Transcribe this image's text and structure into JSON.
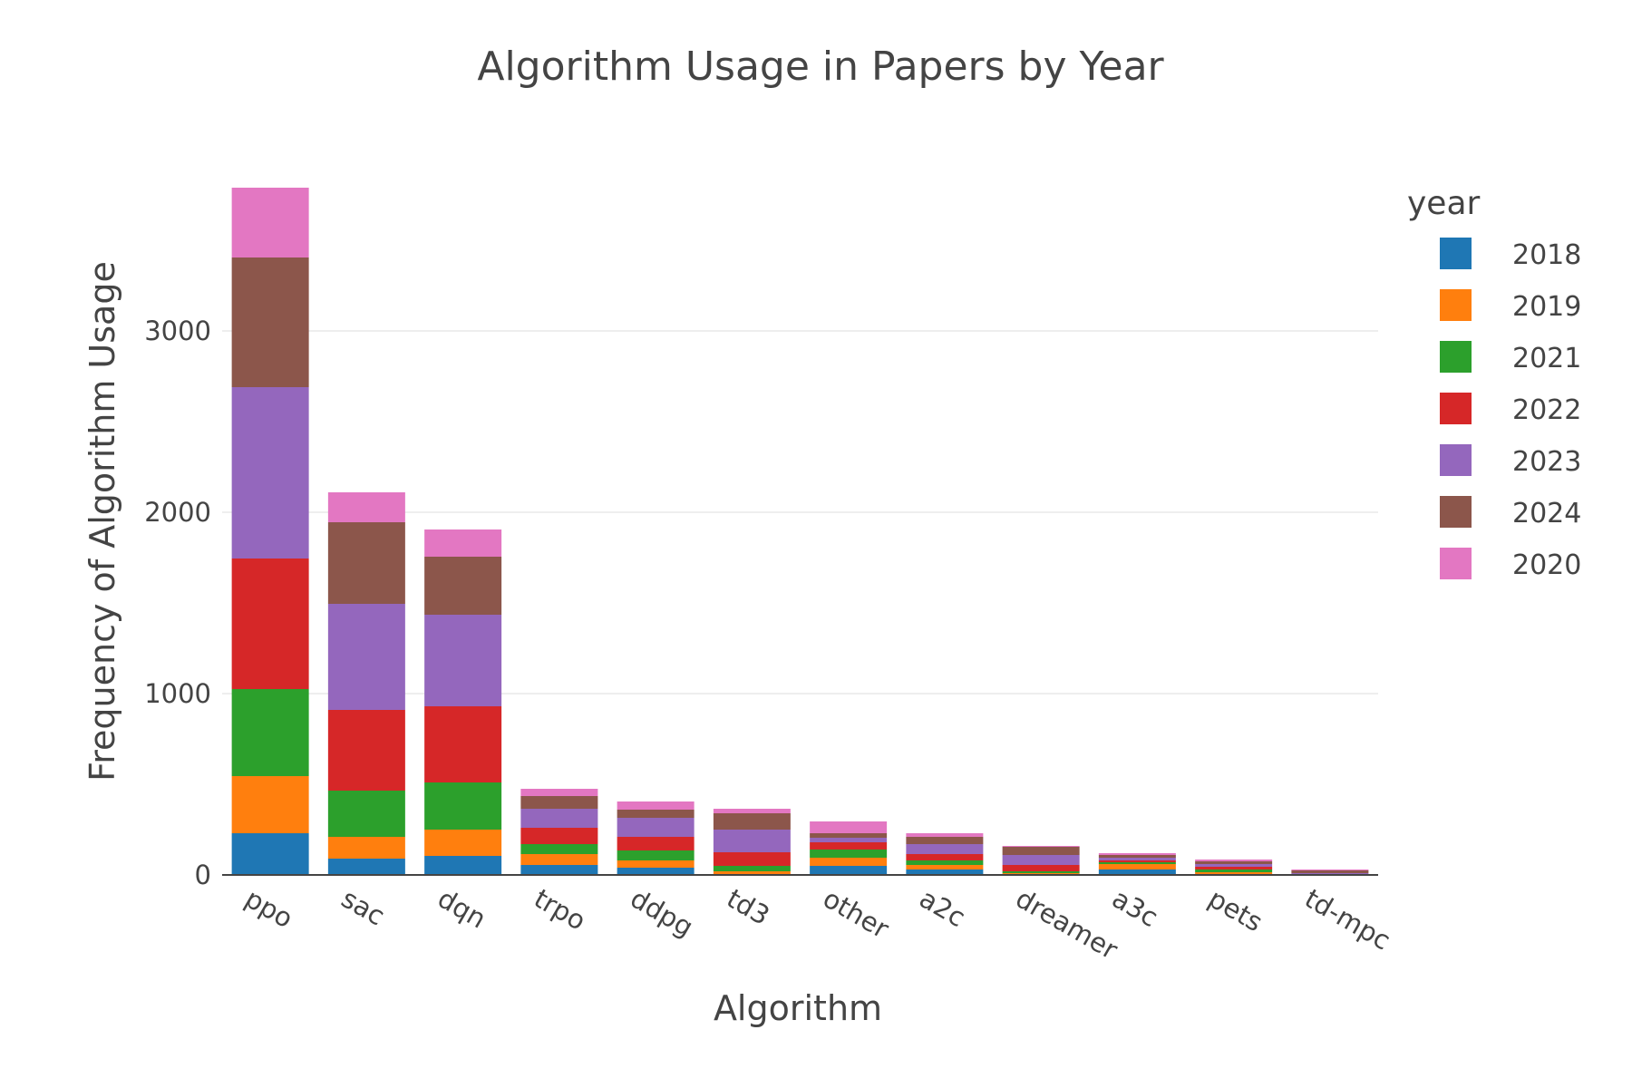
{
  "chart_data": {
    "type": "bar",
    "barmode": "stack",
    "title": "Algorithm Usage in Papers by Year",
    "xlabel": "Algorithm",
    "ylabel": "Frequency of Algorithm Usage",
    "legend_title": "year",
    "legend_position": "right",
    "grid": true,
    "ylim": [
      0,
      3800
    ],
    "yticks": [
      0,
      1000,
      2000,
      3000
    ],
    "categories": [
      "ppo",
      "sac",
      "dqn",
      "trpo",
      "ddpg",
      "td3",
      "other",
      "a2c",
      "dreamer",
      "a3c",
      "pets",
      "td-mpc"
    ],
    "series": [
      {
        "name": "2018",
        "color": "#1f77b4",
        "values": [
          230,
          90,
          105,
          55,
          40,
          5,
          50,
          30,
          5,
          30,
          5,
          0
        ]
      },
      {
        "name": "2019",
        "color": "#ff7f0e",
        "values": [
          315,
          120,
          145,
          60,
          40,
          15,
          45,
          25,
          5,
          30,
          10,
          0
        ]
      },
      {
        "name": "2021",
        "color": "#2ca02c",
        "values": [
          480,
          255,
          260,
          55,
          55,
          30,
          45,
          25,
          10,
          10,
          15,
          2
        ]
      },
      {
        "name": "2022",
        "color": "#d62728",
        "values": [
          720,
          445,
          420,
          90,
          75,
          75,
          40,
          35,
          35,
          10,
          15,
          3
        ]
      },
      {
        "name": "2023",
        "color": "#9467bd",
        "values": [
          945,
          585,
          505,
          105,
          105,
          125,
          25,
          55,
          55,
          15,
          15,
          5
        ]
      },
      {
        "name": "2024",
        "color": "#8c564b",
        "values": [
          715,
          450,
          320,
          70,
          45,
          90,
          25,
          40,
          45,
          15,
          15,
          15
        ]
      },
      {
        "name": "2020",
        "color": "#e377c2",
        "values": [
          385,
          165,
          150,
          40,
          45,
          25,
          65,
          20,
          5,
          10,
          10,
          5
        ]
      }
    ]
  }
}
